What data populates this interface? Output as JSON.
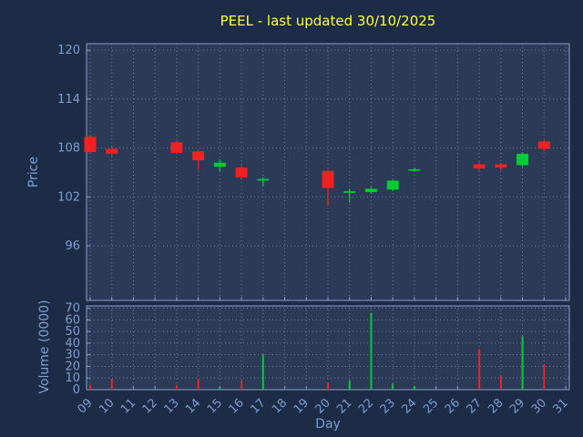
{
  "chart_data": {
    "type": "candlestick",
    "title": "PEEL - last updated 30/10/2025",
    "xlabel": "Day",
    "ylabel_price": "Price",
    "ylabel_volume": "Volume (0000)",
    "legend_position": "none",
    "grid": true,
    "price_ticks": [
      96,
      102,
      108,
      114,
      120
    ],
    "volume_ticks": [
      0,
      10,
      20,
      30,
      40,
      50,
      60,
      70
    ],
    "day_ticks": [
      "09",
      "10",
      "11",
      "12",
      "13",
      "14",
      "15",
      "16",
      "17",
      "18",
      "19",
      "20",
      "21",
      "22",
      "23",
      "24",
      "25",
      "26",
      "27",
      "28",
      "29",
      "30",
      "31"
    ],
    "day_range": [
      9,
      31
    ],
    "price_range": [
      89.3,
      120.8
    ],
    "volume_max": 72,
    "colors": {
      "background": "#1c2b46",
      "plot_background": "#2a3a57",
      "grid": "#aab6cc",
      "axis": "#8aa0c8",
      "tick_label": "#7d9ece",
      "title": "#ffff3c",
      "up": "#00cc33",
      "down": "#ee2222"
    },
    "candles": [
      {
        "day": 9,
        "open": 109.4,
        "high": 109.6,
        "low": 107.3,
        "close": 107.5,
        "volume": 4
      },
      {
        "day": 10,
        "open": 107.9,
        "high": 108.2,
        "low": 107.0,
        "close": 107.3,
        "volume": 9
      },
      {
        "day": 13,
        "open": 108.7,
        "high": 108.9,
        "low": 107.2,
        "close": 107.4,
        "volume": 4
      },
      {
        "day": 14,
        "open": 107.6,
        "high": 107.8,
        "low": 105.4,
        "close": 106.5,
        "volume": 9
      },
      {
        "day": 15,
        "open": 105.7,
        "high": 106.6,
        "low": 105.1,
        "close": 106.2,
        "volume": 2
      },
      {
        "day": 16,
        "open": 105.6,
        "high": 105.8,
        "low": 104.1,
        "close": 104.4,
        "volume": 8
      },
      {
        "day": 17,
        "open": 104.1,
        "high": 104.4,
        "low": 103.3,
        "close": 104.2,
        "volume": 30
      },
      {
        "day": 20,
        "open": 105.2,
        "high": 105.4,
        "low": 100.9,
        "close": 103.1,
        "volume": 6
      },
      {
        "day": 21,
        "open": 102.6,
        "high": 103.0,
        "low": 101.3,
        "close": 102.7,
        "volume": 8
      },
      {
        "day": 22,
        "open": 102.6,
        "high": 103.2,
        "low": 102.4,
        "close": 103.0,
        "volume": 66
      },
      {
        "day": 23,
        "open": 102.9,
        "high": 104.1,
        "low": 102.7,
        "close": 104.0,
        "volume": 5
      },
      {
        "day": 24,
        "open": 105.3,
        "high": 105.6,
        "low": 105.1,
        "close": 105.4,
        "volume": 3
      },
      {
        "day": 27,
        "open": 106.0,
        "high": 106.3,
        "low": 105.2,
        "close": 105.5,
        "volume": 35
      },
      {
        "day": 28,
        "open": 106.0,
        "high": 106.2,
        "low": 105.3,
        "close": 105.6,
        "volume": 12
      },
      {
        "day": 29,
        "open": 105.9,
        "high": 107.5,
        "low": 105.7,
        "close": 107.3,
        "volume": 46
      },
      {
        "day": 30,
        "open": 108.8,
        "high": 109.0,
        "low": 107.6,
        "close": 107.9,
        "volume": 22
      }
    ]
  }
}
